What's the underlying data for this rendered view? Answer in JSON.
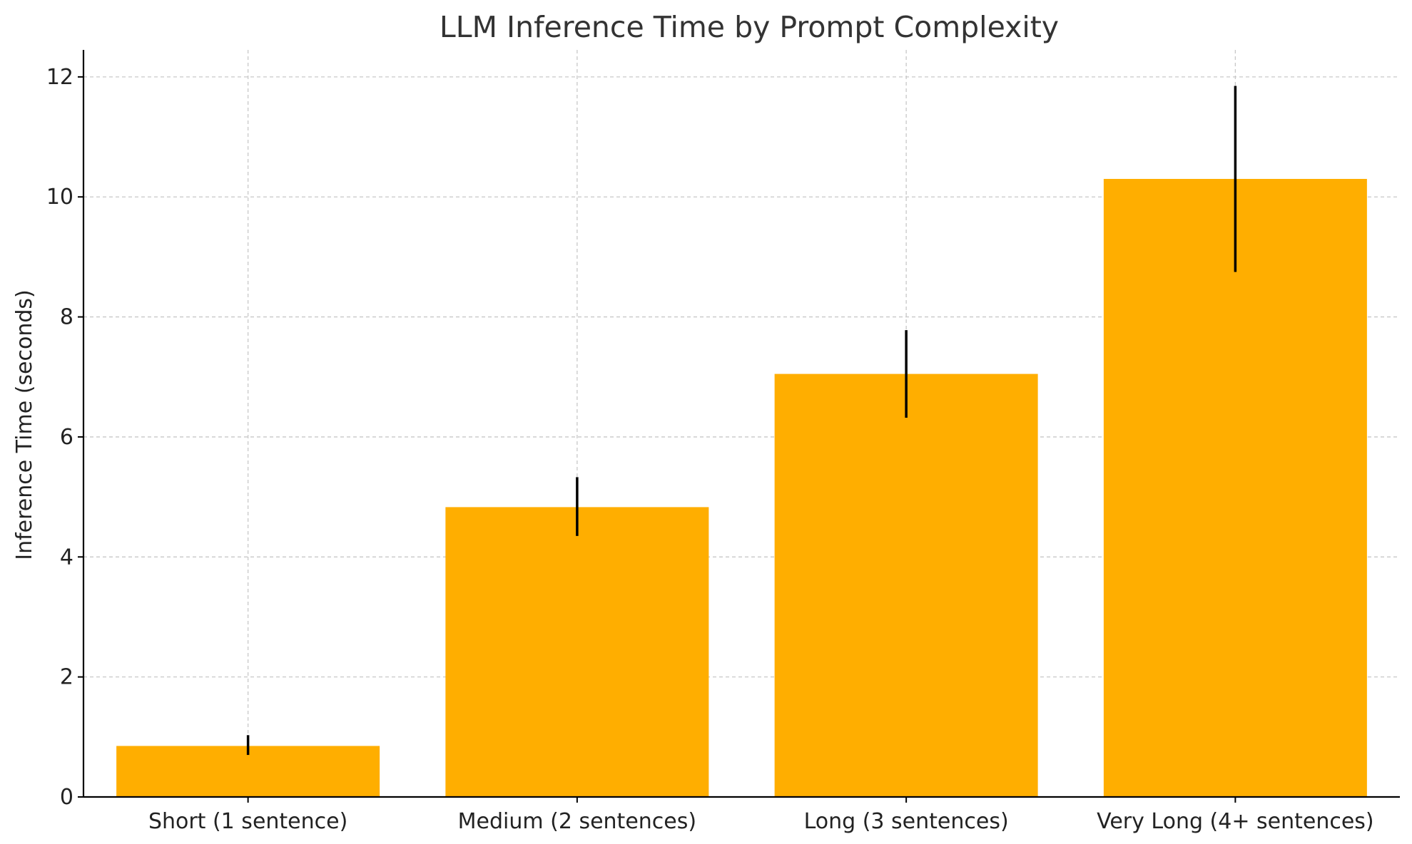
{
  "chart_data": {
    "type": "bar",
    "title": "LLM Inference Time by Prompt Complexity",
    "xlabel": "",
    "ylabel": "Inference Time (seconds)",
    "categories": [
      "Short (1 sentence)",
      "Medium (2 sentences)",
      "Long (3 sentences)",
      "Very Long (4+ sentences)"
    ],
    "values": [
      0.85,
      4.83,
      7.05,
      10.3
    ],
    "error": [
      {
        "low": 0.7,
        "high": 1.03
      },
      {
        "low": 4.35,
        "high": 5.33
      },
      {
        "low": 6.32,
        "high": 7.78
      },
      {
        "low": 8.75,
        "high": 11.85
      }
    ],
    "ylim": [
      0,
      12.45
    ],
    "yticks": [
      0,
      2,
      4,
      6,
      8,
      10,
      12
    ],
    "grid": true,
    "colors": {
      "bar": "#FFAE00",
      "error": "#000000",
      "grid": "#c8c8c8",
      "axis": "#000000"
    }
  }
}
